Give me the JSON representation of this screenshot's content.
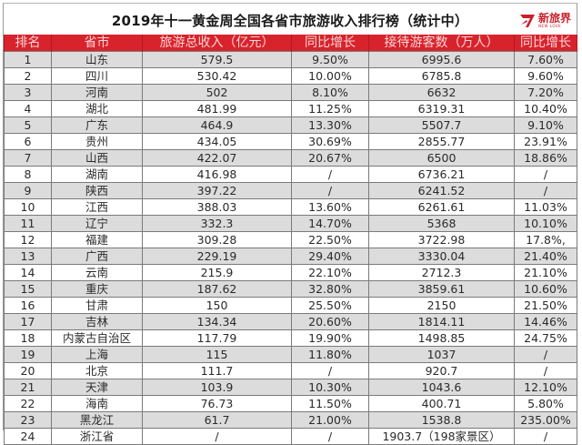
{
  "title": "2019年十一黄金周全国各省市旅游收入排行榜（统计中）",
  "logo": {
    "name": "新旅界",
    "subtitle": "NEW LOVE",
    "icon": "logo-mark-icon",
    "color": "#c8212b"
  },
  "colors": {
    "header_bg": "#d8232c",
    "header_text": "#fbd5d7",
    "row_odd": "#dcdcdc",
    "row_even": "#ffffff"
  },
  "table": {
    "headers": [
      "排名",
      "省市",
      "旅游总收入（亿元）",
      "同比增长",
      "接待游客数（万人）",
      "同比增长"
    ],
    "rows": [
      [
        "1",
        "山东",
        "579.5",
        "9.50%",
        "6995.6",
        "7.60%"
      ],
      [
        "2",
        "四川",
        "530.42",
        "10.00%",
        "6785.8",
        "9.60%"
      ],
      [
        "3",
        "河南",
        "502",
        "8.10%",
        "6632",
        "7.20%"
      ],
      [
        "4",
        "湖北",
        "481.99",
        "11.25%",
        "6319.31",
        "10.40%"
      ],
      [
        "5",
        "广东",
        "464.9",
        "13.30%",
        "5507.7",
        "9.10%"
      ],
      [
        "6",
        "贵州",
        "434.05",
        "30.69%",
        "2855.77",
        "23.91%"
      ],
      [
        "7",
        "山西",
        "422.07",
        "20.67%",
        "6500",
        "18.86%"
      ],
      [
        "8",
        "湖南",
        "416.98",
        "/",
        "6736.21",
        "/"
      ],
      [
        "9",
        "陕西",
        "397.22",
        "/",
        "6241.52",
        "/"
      ],
      [
        "10",
        "江西",
        "388.03",
        "13.60%",
        "6261.61",
        "11.03%"
      ],
      [
        "11",
        "辽宁",
        "332.3",
        "14.70%",
        "5368",
        "10.10%"
      ],
      [
        "12",
        "福建",
        "309.28",
        "22.50%",
        "3722.98",
        "17.8%,"
      ],
      [
        "13",
        "广西",
        "229.19",
        "29.40%",
        "3330.04",
        "21.40%"
      ],
      [
        "14",
        "云南",
        "215.9",
        "22.10%",
        "2712.3",
        "21.10%"
      ],
      [
        "15",
        "重庆",
        "187.62",
        "32.80%",
        "3859.61",
        "10.60%"
      ],
      [
        "16",
        "甘肃",
        "150",
        "25.50%",
        "2150",
        "21.50%"
      ],
      [
        "17",
        "吉林",
        "134.34",
        "20.60%",
        "1814.11",
        "14.46%"
      ],
      [
        "18",
        "内蒙古自治区",
        "117.79",
        "19.90%",
        "1498.85",
        "24.75%"
      ],
      [
        "19",
        "上海",
        "115",
        "11.80%",
        "1037",
        "/"
      ],
      [
        "20",
        "北京",
        "111.7",
        "/",
        "920.7",
        "/"
      ],
      [
        "21",
        "天津",
        "103.9",
        "10.30%",
        "1043.6",
        "12.10%"
      ],
      [
        "22",
        "海南",
        "76.73",
        "11.50%",
        "400.71",
        "5.80%"
      ],
      [
        "23",
        "黑龙江",
        "61.7",
        "21.00%",
        "1538.8",
        "235.00%"
      ],
      [
        "24",
        "浙江省",
        "/",
        "/",
        "1903.7（198家景区）",
        "/"
      ]
    ]
  }
}
